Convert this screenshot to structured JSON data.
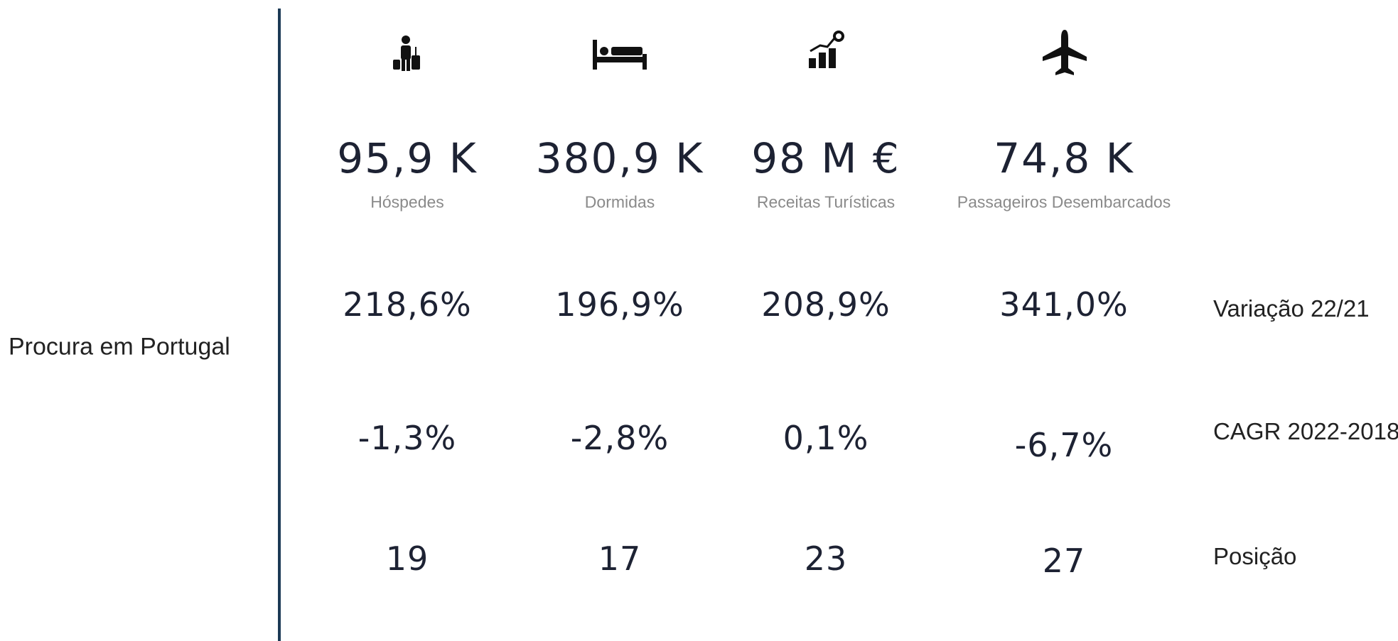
{
  "section_label": "Procura em Portugal",
  "metrics": [
    {
      "value": "95,9 K",
      "name": "Hóspedes",
      "variation": "218,6%",
      "cagr": "-1,3%",
      "position": 19
    },
    {
      "value": "380,9 K",
      "name": "Dormidas",
      "variation": "196,9%",
      "cagr": "-2,8%",
      "position": 17
    },
    {
      "value": "98 M €",
      "name": "Receitas Turísticas",
      "variation": "208,9%",
      "cagr": "0,1%",
      "position": 23
    },
    {
      "value": "74,8 K",
      "name": "Passageiros Desembarcados",
      "variation": "341,0%",
      "cagr": "-6,7%",
      "position": 27
    }
  ],
  "row_labels": [
    "Variação 22/21",
    "CAGR 2022-2018",
    "Posição"
  ]
}
